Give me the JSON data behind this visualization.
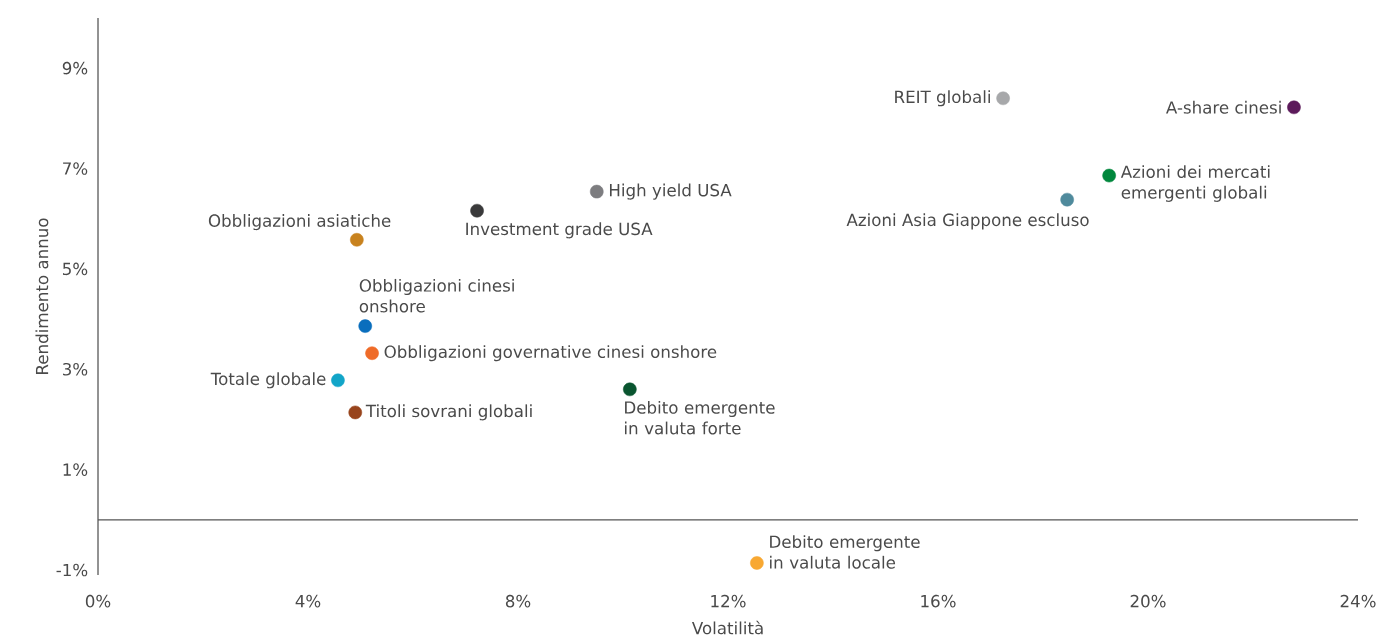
{
  "chart_data": {
    "type": "scatter",
    "xlabel": "Volatilità",
    "ylabel": "Rendimento annuo",
    "x": [
      17.24,
      22.78,
      19.26,
      18.46,
      9.5,
      7.22,
      4.93,
      5.09,
      5.22,
      4.57,
      4.9,
      10.13,
      12.55
    ],
    "values": [
      8.4,
      8.22,
      6.86,
      6.38,
      6.54,
      6.16,
      5.58,
      3.86,
      3.32,
      2.78,
      2.14,
      2.6,
      -0.86
    ],
    "colors": [
      "#a7a8aa",
      "#5c1a5b",
      "#00873c",
      "#4f8a9c",
      "#7d7d80",
      "#3a3a3b",
      "#c8821e",
      "#0a6ebd",
      "#ef6b28",
      "#12a5c8",
      "#98441c",
      "#0a5530",
      "#f8a832"
    ],
    "annotations": [
      {
        "text": "REIT globali",
        "x": 17.24,
        "y": 8.4
      },
      {
        "text": "A-share cinesi",
        "x": 22.78,
        "y": 8.22
      },
      {
        "text": "Azioni dei mercati emergenti globali",
        "x": 19.26,
        "y": 6.86
      },
      {
        "text": "Azioni Asia Giappone escluso",
        "x": 18.46,
        "y": 6.38
      },
      {
        "text": "High yield USA",
        "x": 9.5,
        "y": 6.54
      },
      {
        "text": "Investment grade USA",
        "x": 7.22,
        "y": 6.16
      },
      {
        "text": "Obbligazioni asiatiche",
        "x": 4.93,
        "y": 5.58
      },
      {
        "text": "Obbligazioni cinesi onshore",
        "x": 5.09,
        "y": 3.86
      },
      {
        "text": "Obbligazioni governative cinesi onshore",
        "x": 5.22,
        "y": 3.32
      },
      {
        "text": "Totale globale",
        "x": 4.57,
        "y": 2.78
      },
      {
        "text": "Titoli sovrani globali",
        "x": 4.9,
        "y": 2.14
      },
      {
        "text": "Debito emergente in valuta forte",
        "x": 10.13,
        "y": 2.6
      },
      {
        "text": "Debito emergente in valuta locale",
        "x": 12.55,
        "y": -0.86
      }
    ],
    "xlim": [
      0,
      24
    ],
    "ylim": [
      -1.1,
      10
    ],
    "xticks": [
      {
        "value": 0,
        "label": "0%"
      },
      {
        "value": 4,
        "label": "4%"
      },
      {
        "value": 8,
        "label": "8%"
      },
      {
        "value": 12,
        "label": "12%"
      },
      {
        "value": 16,
        "label": "16%"
      },
      {
        "value": 20,
        "label": "20%"
      },
      {
        "value": 24,
        "label": "24%"
      }
    ],
    "yticks": [
      {
        "value": -1,
        "label": "-1%"
      },
      {
        "value": 1,
        "label": "1%"
      },
      {
        "value": 3,
        "label": "3%"
      },
      {
        "value": 5,
        "label": "5%"
      },
      {
        "value": 7,
        "label": "7%"
      },
      {
        "value": 9,
        "label": "9%"
      }
    ],
    "ref_lines": [
      {
        "axis": "y",
        "value": 0,
        "color": "#555555"
      }
    ],
    "grid": false,
    "marker": "circle"
  }
}
